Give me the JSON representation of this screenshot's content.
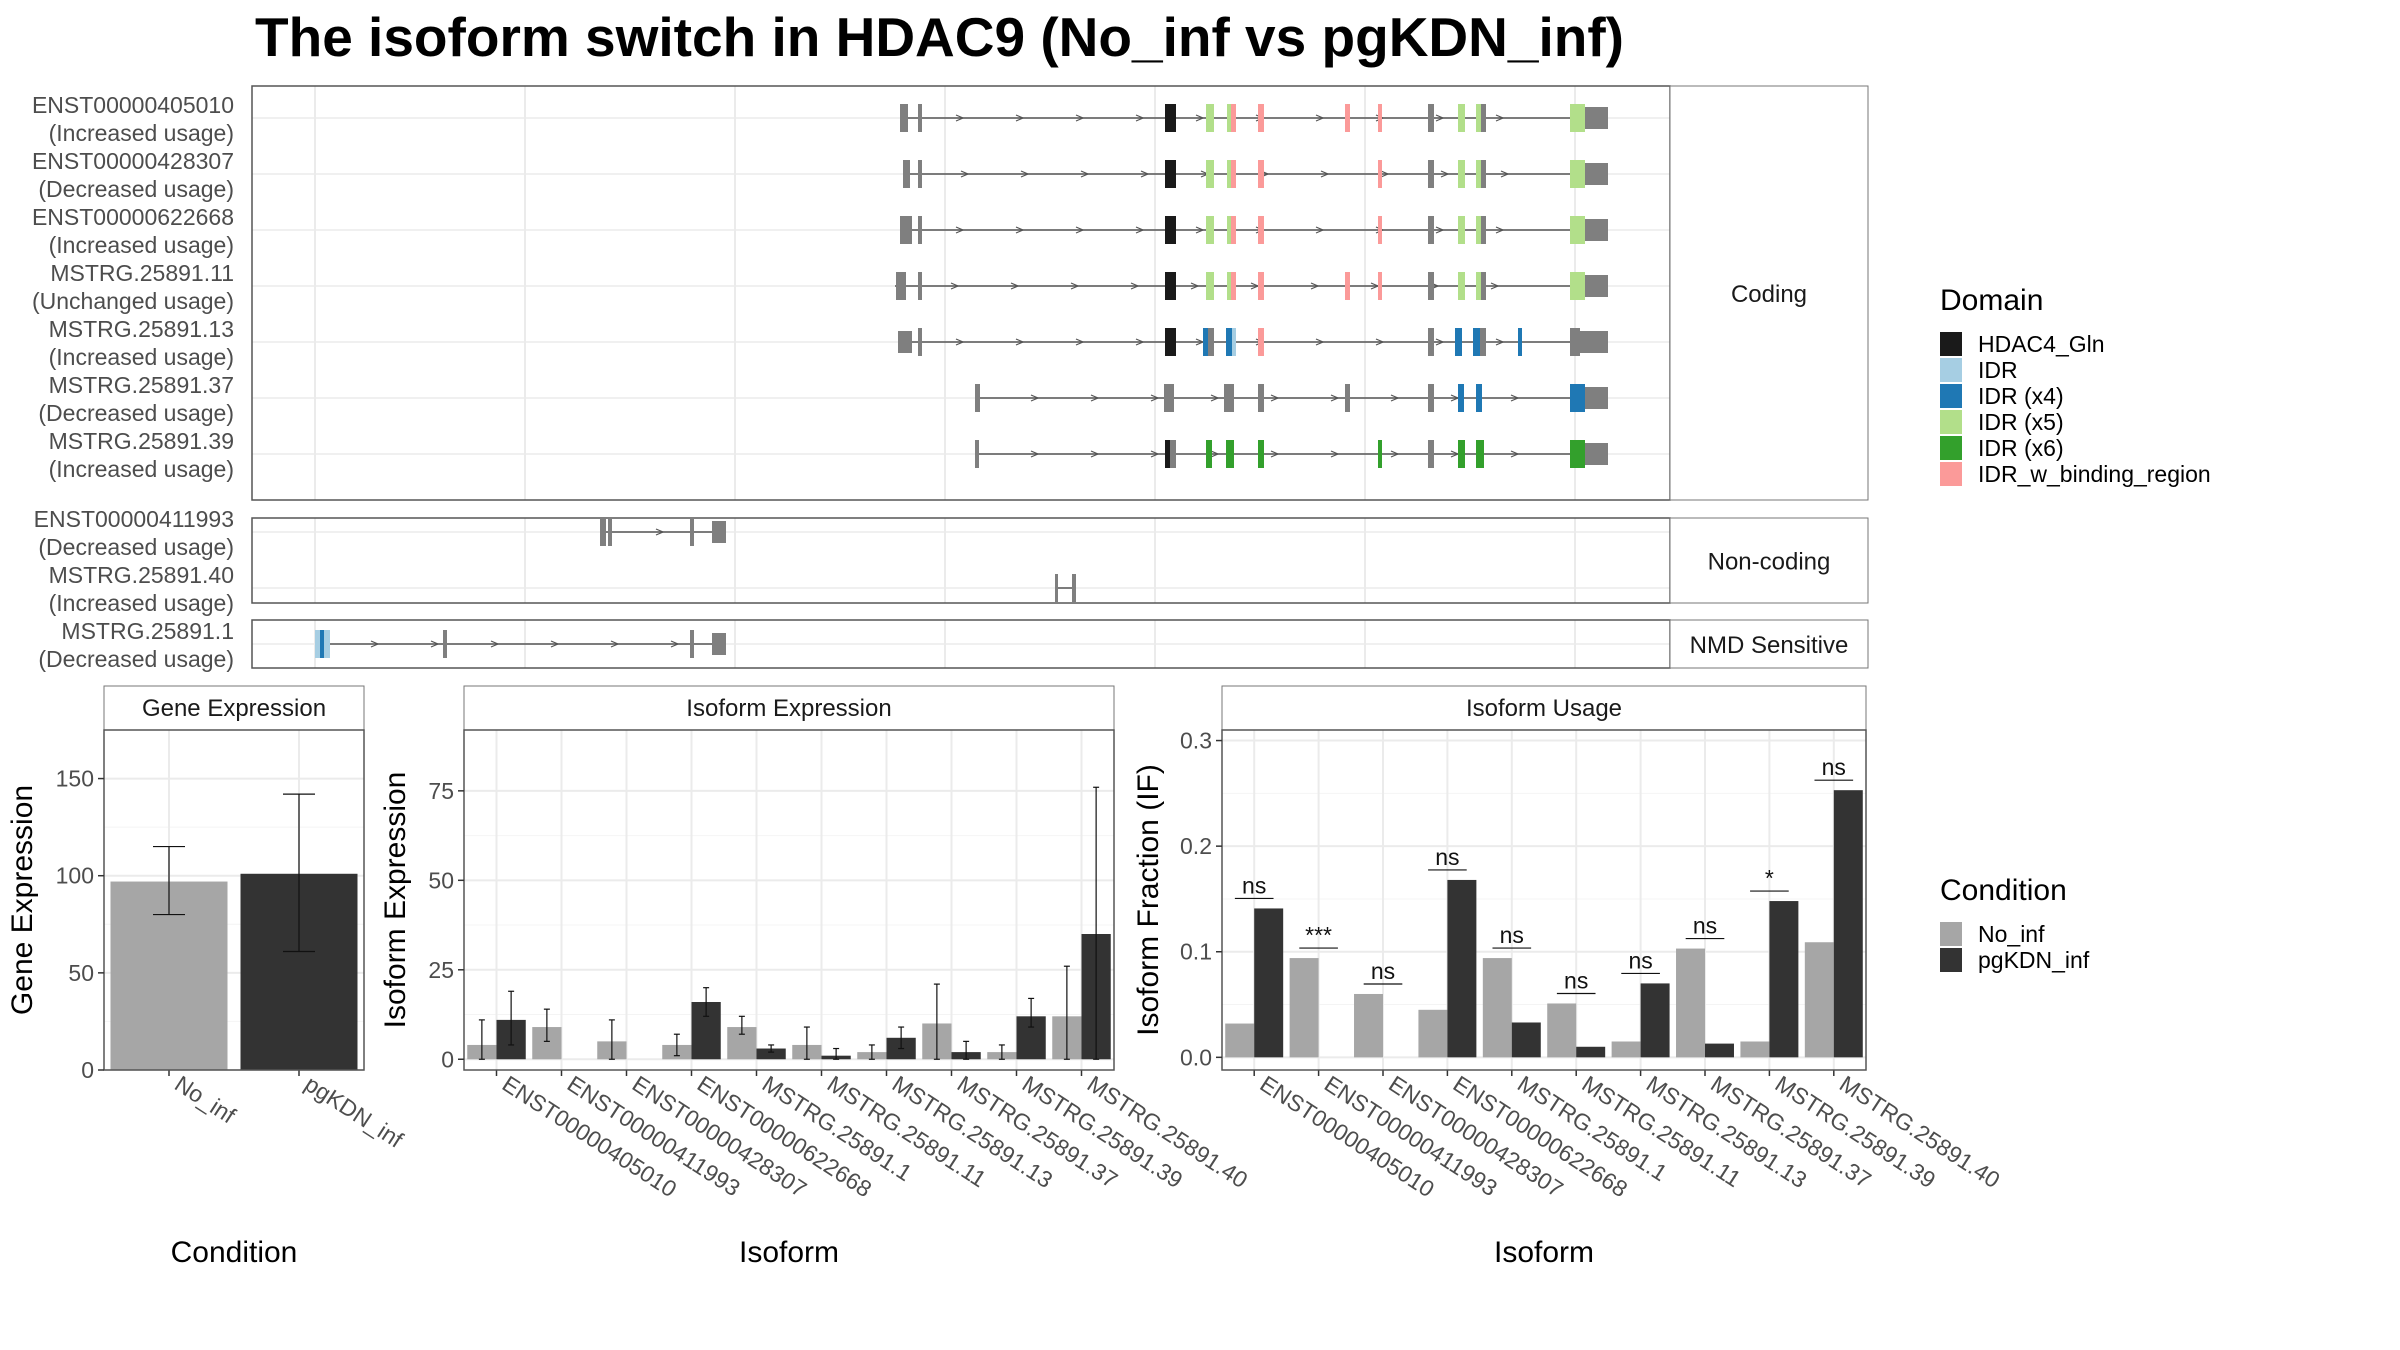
{
  "title": "The isoform switch in HDAC9 (No_inf vs pgKDN_inf)",
  "colors": {
    "no_inf": "#a6a6a6",
    "pgkdn_inf": "#333333",
    "backbone": "#7f7f7f",
    "panel_border": "#555555",
    "grid": "#ebebeb"
  },
  "structure": {
    "groups": [
      {
        "label": "Coding",
        "isoforms": [
          {
            "id": "ENST00000405010",
            "usage": "(Increased usage)"
          },
          {
            "id": "ENST00000428307",
            "usage": "(Decreased usage)"
          },
          {
            "id": "ENST00000622668",
            "usage": "(Increased usage)"
          },
          {
            "id": "MSTRG.25891.11",
            "usage": "(Unchanged usage)"
          },
          {
            "id": "MSTRG.25891.13",
            "usage": "(Increased usage)"
          },
          {
            "id": "MSTRG.25891.37",
            "usage": "(Decreased usage)"
          },
          {
            "id": "MSTRG.25891.39",
            "usage": "(Increased usage)"
          }
        ]
      },
      {
        "label": "Non-coding",
        "isoforms": [
          {
            "id": "ENST00000411993",
            "usage": "(Decreased usage)"
          },
          {
            "id": "MSTRG.25891.40",
            "usage": "(Increased usage)"
          }
        ]
      },
      {
        "label": "NMD Sensitive",
        "isoforms": [
          {
            "id": "MSTRG.25891.1",
            "usage": "(Decreased usage)"
          }
        ]
      }
    ]
  },
  "domain_legend": {
    "title": "Domain",
    "items": [
      {
        "label": "HDAC4_Gln",
        "color": "#1a1a1a"
      },
      {
        "label": "IDR",
        "color": "#a6cee3"
      },
      {
        "label": "IDR (x4)",
        "color": "#1f78b4"
      },
      {
        "label": "IDR (x5)",
        "color": "#b2df8a"
      },
      {
        "label": "IDR (x6)",
        "color": "#33a02c"
      },
      {
        "label": "IDR_w_binding_region",
        "color": "#fb9a99"
      }
    ]
  },
  "condition_legend": {
    "title": "Condition",
    "items": [
      {
        "label": "No_inf",
        "color": "#a6a6a6"
      },
      {
        "label": "pgKDN_inf",
        "color": "#333333"
      }
    ]
  },
  "chart_data": [
    {
      "type": "bar",
      "title": "Gene Expression",
      "xlabel": "Condition",
      "ylabel": "Gene Expression",
      "ylim": [
        0,
        175
      ],
      "yticks": [
        0,
        50,
        100,
        150
      ],
      "categories": [
        "No_inf",
        "pgKDN_inf"
      ],
      "values": [
        97,
        101
      ],
      "error_low": [
        80,
        61
      ],
      "error_high": [
        115,
        142
      ]
    },
    {
      "type": "bar",
      "title": "Isoform Expression",
      "xlabel": "Isoform",
      "ylabel": "Isoform Expression",
      "ylim": [
        -3,
        92
      ],
      "yticks": [
        0,
        25,
        50,
        75
      ],
      "categories": [
        "ENST00000405010",
        "ENST00000411993",
        "ENST00000428307",
        "ENST00000622668",
        "MSTRG.25891.1",
        "MSTRG.25891.11",
        "MSTRG.25891.13",
        "MSTRG.25891.37",
        "MSTRG.25891.39",
        "MSTRG.25891.40"
      ],
      "series": [
        {
          "name": "No_inf",
          "values": [
            4,
            9,
            5,
            4,
            9,
            4,
            2,
            10,
            2,
            12
          ],
          "error_low": [
            0,
            5,
            0,
            1,
            7,
            0,
            0,
            0,
            0,
            0
          ],
          "error_high": [
            11,
            14,
            11,
            7,
            12,
            9,
            4,
            21,
            4,
            26
          ]
        },
        {
          "name": "pgKDN_inf",
          "values": [
            11,
            0,
            0,
            16,
            3,
            1,
            6,
            2,
            12,
            35
          ],
          "error_low": [
            4,
            0,
            0,
            12,
            2,
            0,
            3,
            0,
            9,
            0
          ],
          "error_high": [
            19,
            0,
            0,
            20,
            4,
            3,
            9,
            5,
            17,
            76
          ]
        }
      ]
    },
    {
      "type": "bar",
      "title": "Isoform Usage",
      "xlabel": "Isoform",
      "ylabel": "Isoform Fraction (IF)",
      "ylim": [
        -0.012,
        0.31
      ],
      "yticks": [
        0.0,
        0.1,
        0.2,
        0.3
      ],
      "ytick_labels": [
        "0.0",
        "0.1",
        "0.2",
        "0.3"
      ],
      "categories": [
        "ENST00000405010",
        "ENST00000411993",
        "ENST00000428307",
        "ENST00000622668",
        "MSTRG.25891.1",
        "MSTRG.25891.11",
        "MSTRG.25891.13",
        "MSTRG.25891.37",
        "MSTRG.25891.39",
        "MSTRG.25891.40"
      ],
      "series": [
        {
          "name": "No_inf",
          "values": [
            0.032,
            0.094,
            0.06,
            0.045,
            0.094,
            0.051,
            0.015,
            0.103,
            0.015,
            0.109
          ]
        },
        {
          "name": "pgKDN_inf",
          "values": [
            0.141,
            0.0,
            0.0,
            0.168,
            0.033,
            0.01,
            0.07,
            0.013,
            0.148,
            0.253
          ]
        }
      ],
      "significance": [
        "ns",
        "***",
        "ns",
        "ns",
        "ns",
        "ns",
        "ns",
        "ns",
        "*",
        "ns"
      ]
    }
  ]
}
